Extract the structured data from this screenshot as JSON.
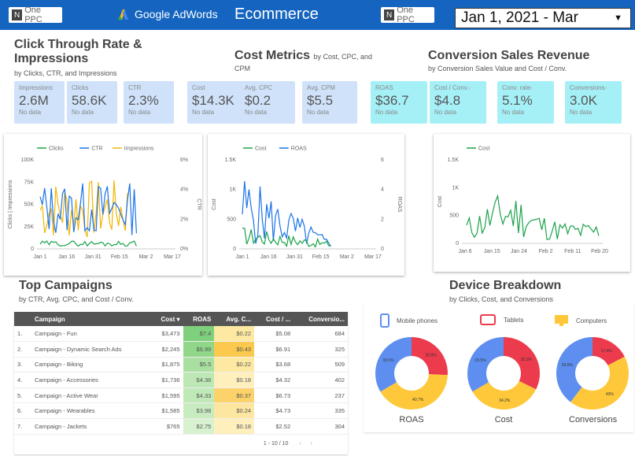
{
  "header": {
    "logo": "One PPC",
    "adwords": "Google AdWords",
    "title": "Ecommerce",
    "date": "Jan 1, 2021 - Mar"
  },
  "ctr": {
    "title": "Click Through Rate &",
    "title2": "Impressions",
    "sub": "by Clicks, CTR, and Impressions",
    "cards": [
      {
        "label": "Impressions",
        "value": "2.6M",
        "note": "No data"
      },
      {
        "label": "Clicks",
        "value": "58.6K",
        "note": "No data"
      },
      {
        "label": "CTR",
        "value": "2.3%",
        "note": "No data"
      }
    ]
  },
  "cost": {
    "title": "Cost Metrics",
    "by": "by Cost, CPC, and",
    "sub2": "CPM",
    "cards": [
      {
        "label": "Cost",
        "value": "$14.3K",
        "note": "No data"
      },
      {
        "label": "Avg. CPC",
        "value": "$0.2",
        "note": "No data"
      },
      {
        "label": "Avg. CPM",
        "value": "$5.5",
        "note": "No data"
      }
    ]
  },
  "conv": {
    "title": "Conversion Sales Revenue",
    "sub": "by Conversion Sales Value and Cost / Conv.",
    "cards": [
      {
        "label": "ROAS",
        "value": "$36.7",
        "note": "No data"
      },
      {
        "label": "Cost / Conv.-",
        "value": "$4.8",
        "note": "No data"
      },
      {
        "label": "Conv. rate-",
        "value": "5.1%",
        "note": "No data"
      },
      {
        "label": "Conversions-",
        "value": "3.0K",
        "note": "No data"
      }
    ]
  },
  "chart1": {
    "legend": [
      "Clicks",
      "CTR",
      "Impressions"
    ],
    "y1ticks": [
      "100K",
      "75K",
      "50K",
      "25K",
      "0"
    ],
    "y2ticks": [
      "6%",
      "4%",
      "2%",
      "0%"
    ],
    "xticks": [
      "Jan 1",
      "Jan 16",
      "Jan 31",
      "Feb 15",
      "Mar 2",
      "Mar 17"
    ],
    "ylabel": "Clicks | Impressions",
    "y2label": "CTR"
  },
  "chart2": {
    "legend": [
      "Cost",
      "ROAS"
    ],
    "y1ticks": [
      "1.5K",
      "1K",
      "500",
      "0"
    ],
    "y2ticks": [
      "6",
      "4",
      "2",
      "0"
    ],
    "xticks": [
      "Jan 1",
      "Jan 16",
      "Jan 31",
      "Feb 15",
      "Mar 2",
      "Mar 17"
    ],
    "ylabel": "Cost",
    "y2label": "ROAS"
  },
  "chart3": {
    "legend": [
      "Cost"
    ],
    "y1ticks": [
      "1.5K",
      "1K",
      "500",
      "0"
    ],
    "xticks": [
      "Jan 6",
      "Jan 15",
      "Jan 24",
      "Feb 2",
      "Feb 11",
      "Feb 20"
    ],
    "ylabel": "Cost"
  },
  "campaigns": {
    "title": "Top Campaigns",
    "sub": "by CTR, Avg. CPC, and Cost / Conv.",
    "headers": [
      "Campaign",
      "Cost ▾",
      "ROAS",
      "Avg. C...",
      "Cost / ...",
      "Conversio..."
    ],
    "rows": [
      [
        "1.",
        "Campaign - Fun",
        "$3,473",
        "$7.4",
        "$0.22",
        "$5.08",
        "684"
      ],
      [
        "2.",
        "Campaign - Dynamic Search Ads",
        "$2,245",
        "$6.99",
        "$0.43",
        "$6.91",
        "325"
      ],
      [
        "3.",
        "Campaign - Biking",
        "$1,875",
        "$5.5",
        "$0.22",
        "$3.68",
        "509"
      ],
      [
        "4.",
        "Campaign - Accessories",
        "$1,736",
        "$4.36",
        "$0.18",
        "$4.32",
        "402"
      ],
      [
        "5.",
        "Campaign - Active Wear",
        "$1,595",
        "$4.33",
        "$0.37",
        "$6.73",
        "237"
      ],
      [
        "6.",
        "Campaign - Wearables",
        "$1,585",
        "$3.98",
        "$0.24",
        "$4.73",
        "335"
      ],
      [
        "7.",
        "Campaign - Jackets",
        "$765",
        "$2.75",
        "$0.18",
        "$2.52",
        "304"
      ]
    ],
    "pager": "1 - 10 / 10"
  },
  "devices": {
    "title": "Device Breakdown",
    "sub": "by Clicks, Cost, and Conversions",
    "legend": [
      "Mobile phones",
      "Tablets",
      "Computers"
    ],
    "colors": {
      "mobile": "#5e8ff0",
      "tablet": "#ec3b4c",
      "computer": "#ffc83a"
    },
    "donuts": [
      {
        "label": "ROAS",
        "pct": [
          "25.8%",
          "40.7%",
          "33.5%"
        ],
        "values": [
          25.8,
          40.7,
          33.5
        ]
      },
      {
        "label": "Cost",
        "pct": [
          "32.3%",
          "34.2%",
          "33.5%"
        ],
        "values": [
          32.3,
          34.2,
          33.5
        ]
      },
      {
        "label": "Conversions",
        "pct": [
          "17.4%",
          "43%",
          "39.6%"
        ],
        "values": [
          17.4,
          43,
          39.6
        ]
      }
    ]
  }
}
